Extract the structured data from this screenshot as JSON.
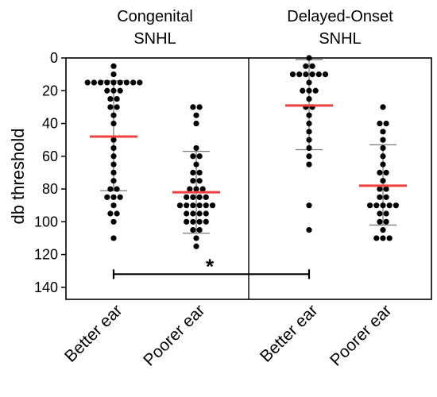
{
  "chart_data": {
    "type": "scatter",
    "ylabel": "db threshold",
    "ylim": [
      0,
      150
    ],
    "y_inverted": true,
    "yticks": [
      0,
      20,
      40,
      60,
      80,
      100,
      120,
      140
    ],
    "groups": [
      {
        "title_line1": "Congenital",
        "title_line2": "SNHL"
      },
      {
        "title_line1": "Delayed-Onset",
        "title_line2": "SNHL"
      }
    ],
    "categories": [
      "Better ear",
      "Poorer ear",
      "Better ear",
      "Poorer ear"
    ],
    "series": [
      {
        "category": "Better ear",
        "group": "Congenital SNHL",
        "mean": 48,
        "sd_low": 14,
        "sd_high": 81,
        "values": [
          5,
          10,
          15,
          15,
          15,
          15,
          15,
          15,
          15,
          15,
          15,
          20,
          20,
          20,
          25,
          25,
          30,
          30,
          35,
          40,
          50,
          55,
          60,
          65,
          70,
          75,
          80,
          80,
          85,
          85,
          85,
          90,
          95,
          95,
          100,
          110
        ]
      },
      {
        "category": "Poorer ear",
        "group": "Congenital SNHL",
        "mean": 82,
        "sd_low": 57,
        "sd_high": 107,
        "values": [
          30,
          30,
          35,
          40,
          55,
          60,
          60,
          65,
          70,
          70,
          75,
          75,
          80,
          80,
          80,
          85,
          85,
          85,
          85,
          90,
          90,
          90,
          90,
          90,
          90,
          95,
          95,
          95,
          95,
          100,
          100,
          100,
          100,
          105,
          105,
          110,
          115
        ]
      },
      {
        "category": "Better ear",
        "group": "Delayed-Onset SNHL",
        "mean": 29,
        "sd_low": 1,
        "sd_high": 56,
        "values": [
          0,
          5,
          5,
          10,
          10,
          10,
          10,
          10,
          10,
          15,
          20,
          20,
          20,
          25,
          30,
          30,
          35,
          40,
          45,
          50,
          55,
          60,
          65,
          90,
          105
        ]
      },
      {
        "category": "Poorer ear",
        "group": "Delayed-Onset SNHL",
        "mean": 78,
        "sd_low": 53,
        "sd_high": 102,
        "values": [
          30,
          40,
          40,
          45,
          50,
          55,
          60,
          65,
          70,
          70,
          75,
          80,
          80,
          85,
          85,
          90,
          90,
          90,
          90,
          90,
          95,
          95,
          100,
          100,
          105,
          110,
          110,
          110
        ]
      }
    ],
    "significance": {
      "from_series": 0,
      "to_series": 2,
      "y": 132,
      "label": "*"
    }
  },
  "colors": {
    "points": "#000000",
    "mean_line": "#f04040",
    "error_bar": "#7a7a7a",
    "axis": "#000000"
  }
}
